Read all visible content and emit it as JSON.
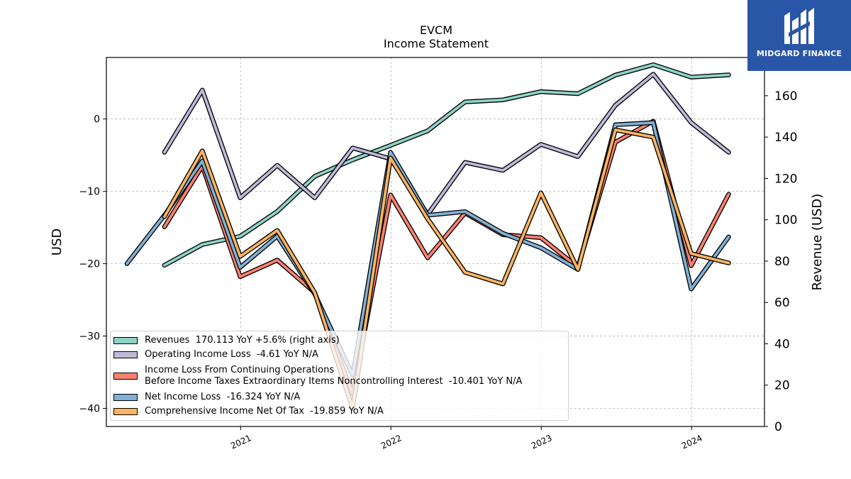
{
  "chart_data": {
    "type": "line",
    "title": "EVCM",
    "subtitle": "Income Statement",
    "ylabel": "USD",
    "ylabel_right": "Revenue (USD)",
    "ylim": [
      -42.5,
      8.5
    ],
    "ylim_right": [
      0,
      178.5
    ],
    "yticks": [
      0,
      -10,
      -20,
      -30,
      -40
    ],
    "yticks_right": [
      0,
      20,
      40,
      60,
      80,
      100,
      120,
      140,
      160
    ],
    "xlim": [
      "2020-02-10",
      "2024-06-26"
    ],
    "xticks": [
      "2021",
      "2022",
      "2023",
      "2024"
    ],
    "grid": true,
    "legend_position": "lower-left",
    "series": [
      {
        "name": "Revenues",
        "legend_label": "Revenues  170.113 YoY +5.6% (right axis)",
        "axis": "right",
        "color": "#8dd3c7",
        "x": [
          "2020-06-30",
          "2020-09-30",
          "2020-12-31",
          "2021-03-31",
          "2021-06-30",
          "2021-09-30",
          "2021-12-31",
          "2022-03-31",
          "2022-06-30",
          "2022-09-30",
          "2022-12-31",
          "2023-03-31",
          "2023-06-30",
          "2023-09-30",
          "2023-12-31",
          "2024-03-31"
        ],
        "values": [
          78,
          88,
          92,
          104,
          121,
          129,
          136,
          143,
          157,
          158,
          162,
          161,
          170,
          175,
          169,
          170.1
        ]
      },
      {
        "name": "Operating Income Loss",
        "legend_label": "Operating Income Loss  -4.61 YoY N/A",
        "axis": "left",
        "color": "#bebada",
        "x": [
          "2020-06-30",
          "2020-09-30",
          "2020-12-31",
          "2021-03-31",
          "2021-06-30",
          "2021-09-30",
          "2021-12-31",
          "2022-03-31",
          "2022-06-30",
          "2022-09-30",
          "2022-12-31",
          "2023-03-31",
          "2023-06-30",
          "2023-09-30",
          "2023-12-31",
          "2024-03-31"
        ],
        "values": [
          -4.6,
          4.0,
          -10.9,
          -6.4,
          -10.9,
          -4.0,
          -5.5,
          -13.2,
          -6.0,
          -7.1,
          -3.5,
          -5.2,
          1.9,
          6.2,
          -0.5,
          -4.6
        ]
      },
      {
        "name": "Income Loss From Continuing Operations Before Income Taxes Extraordinary Items Noncontrolling Interest",
        "legend_label_1": "Income Loss From Continuing Operations",
        "legend_label_2": "Before Income Taxes Extraordinary Items Noncontrolling Interest  -10.401 YoY N/A",
        "axis": "left",
        "color": "#fb8072",
        "x": [
          "2020-06-30",
          "2020-09-30",
          "2020-12-31",
          "2021-03-31",
          "2021-06-30",
          "2021-09-30",
          "2021-12-31",
          "2022-03-31",
          "2022-06-30",
          "2022-09-30",
          "2022-12-31",
          "2023-03-31",
          "2023-06-30",
          "2023-09-30",
          "2023-12-31",
          "2024-03-31"
        ],
        "values": [
          -14.9,
          -6.5,
          -21.8,
          -19.5,
          -24.0,
          -38.0,
          -10.5,
          -19.2,
          -13.0,
          -16.0,
          -16.4,
          -20.5,
          -3.2,
          -0.3,
          -20.3,
          -10.4
        ]
      },
      {
        "name": "Net Income Loss",
        "legend_label": "Net Income Loss  -16.324 YoY N/A",
        "axis": "left",
        "color": "#80b1d3",
        "x": [
          "2020-03-31",
          "2020-06-30",
          "2020-09-30",
          "2020-12-31",
          "2021-03-31",
          "2021-06-30",
          "2021-09-30",
          "2021-12-31",
          "2022-03-31",
          "2022-06-30",
          "2022-09-30",
          "2022-12-31",
          "2023-03-31",
          "2023-06-30",
          "2023-09-30",
          "2023-12-31",
          "2024-03-31"
        ],
        "values": [
          -20.0,
          -13.3,
          -5.8,
          -20.5,
          -16.2,
          -24.2,
          -35.4,
          -4.6,
          -13.3,
          -12.8,
          -15.8,
          -17.8,
          -20.8,
          -0.8,
          -0.5,
          -23.5,
          -16.3
        ]
      },
      {
        "name": "Comprehensive Income Net Of Tax",
        "legend_label": "Comprehensive Income Net Of Tax  -19.859 YoY N/A",
        "axis": "left",
        "color": "#fdb462",
        "x": [
          "2020-06-30",
          "2020-09-30",
          "2020-12-31",
          "2021-03-31",
          "2021-06-30",
          "2021-09-30",
          "2021-12-31",
          "2022-03-31",
          "2022-06-30",
          "2022-09-30",
          "2022-12-31",
          "2023-03-31",
          "2023-06-30",
          "2023-09-30",
          "2023-12-31",
          "2024-03-31"
        ],
        "values": [
          -13.5,
          -4.4,
          -19.0,
          -15.4,
          -24.0,
          -40.0,
          -5.4,
          -13.8,
          -21.2,
          -22.8,
          -10.2,
          -20.8,
          -1.5,
          -2.5,
          -18.6,
          -19.9
        ]
      }
    ]
  },
  "logo": {
    "text": "MIDGARD FINANCE",
    "background": "#2a56a8"
  }
}
